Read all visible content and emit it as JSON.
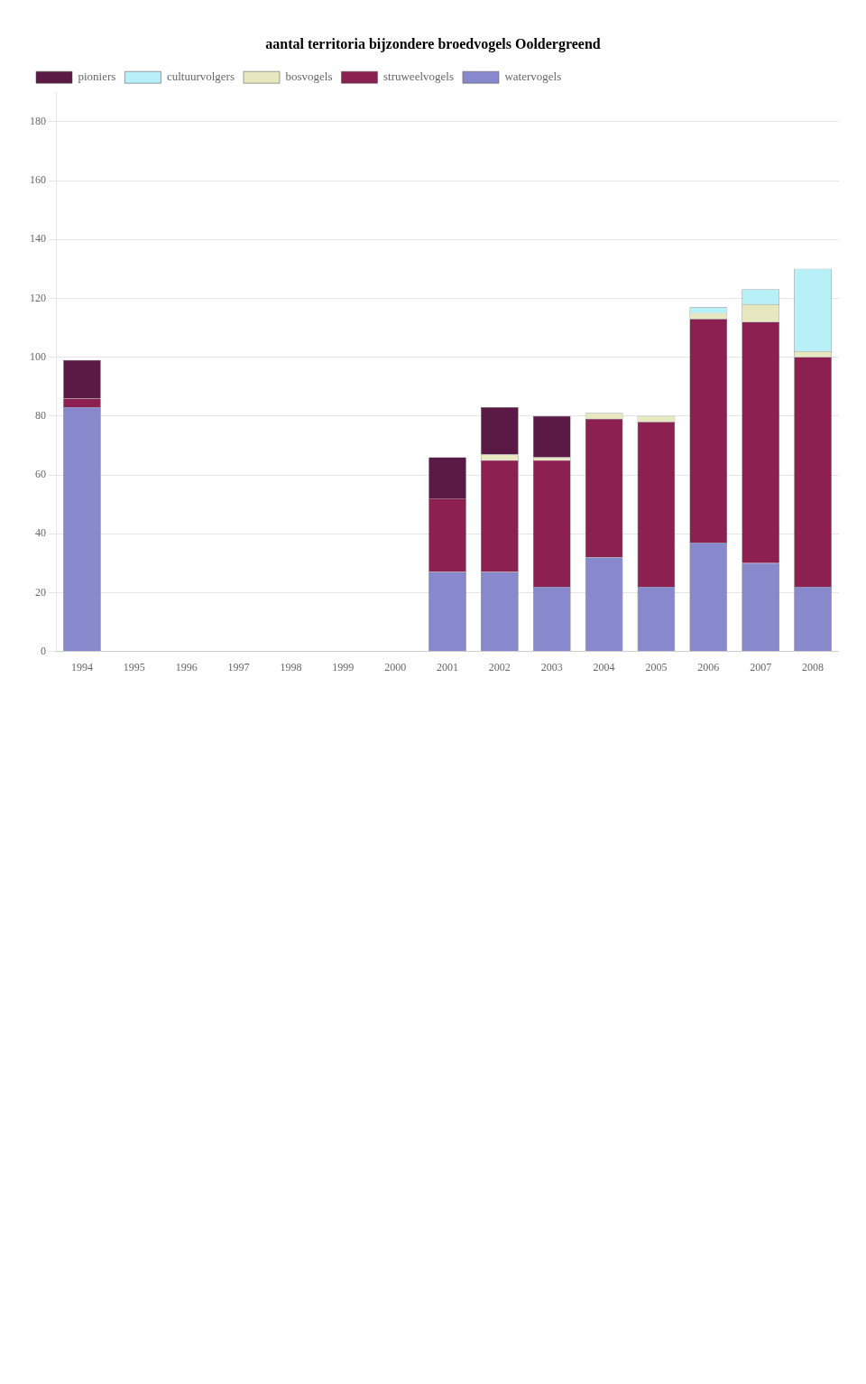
{
  "chart_data": {
    "type": "bar",
    "title": "aantal territoria bijzondere broedvogels Ooldergreend",
    "categories": [
      "1994",
      "1995",
      "1996",
      "1997",
      "1998",
      "1999",
      "2000",
      "2001",
      "2002",
      "2003",
      "2004",
      "2005",
      "2006",
      "2007",
      "2008"
    ],
    "series": [
      {
        "name": "watervogels",
        "color": "#8888cc",
        "values": [
          83,
          0,
          0,
          0,
          0,
          0,
          0,
          27,
          27,
          22,
          32,
          22,
          37,
          30,
          22
        ]
      },
      {
        "name": "struweelvogels",
        "color": "#8c2050",
        "values": [
          3,
          0,
          0,
          0,
          0,
          0,
          0,
          25,
          38,
          43,
          47,
          56,
          76,
          82,
          78
        ]
      },
      {
        "name": "bosvogels",
        "color": "#e8e8c0",
        "values": [
          0,
          0,
          0,
          0,
          0,
          0,
          0,
          0,
          2,
          1,
          2,
          2,
          2,
          6,
          2
        ]
      },
      {
        "name": "cultuurvolgers",
        "color": "#b8f0f8",
        "values": [
          0,
          0,
          0,
          0,
          0,
          0,
          0,
          0,
          0,
          0,
          0,
          0,
          2,
          5,
          28
        ]
      },
      {
        "name": "pioniers",
        "color": "#5a1a45",
        "values": [
          13,
          0,
          0,
          0,
          0,
          0,
          0,
          14,
          16,
          14,
          0,
          0,
          0,
          0,
          0
        ]
      }
    ],
    "stacked": true,
    "ylim": [
      0,
      190
    ],
    "yticks": [
      0,
      20,
      40,
      60,
      80,
      100,
      120,
      140,
      160,
      180
    ],
    "grid": true,
    "legend": "upper left"
  }
}
